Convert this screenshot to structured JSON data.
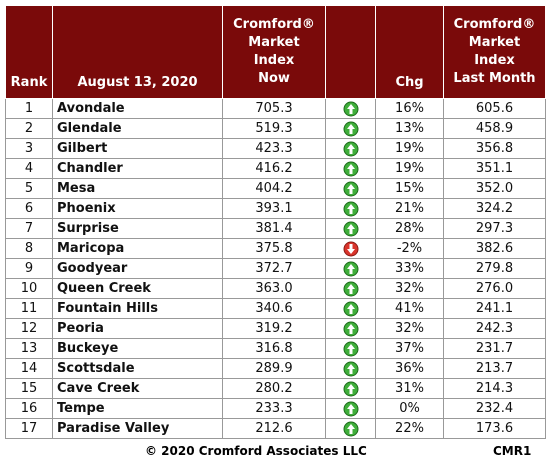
{
  "header": {
    "rank": "Rank",
    "date": "August 13, 2020",
    "now": "Cromford®\nMarket\nIndex\nNow",
    "chg": "Chg",
    "last": "Cromford®\nMarket\nIndex\nLast Month"
  },
  "rows": [
    {
      "rank": "1",
      "city": "Avondale",
      "now": "705.3",
      "chg": "16%",
      "last": "605.6",
      "trend": "up"
    },
    {
      "rank": "2",
      "city": "Glendale",
      "now": "519.3",
      "chg": "13%",
      "last": "458.9",
      "trend": "up"
    },
    {
      "rank": "3",
      "city": "Gilbert",
      "now": "423.3",
      "chg": "19%",
      "last": "356.8",
      "trend": "up"
    },
    {
      "rank": "4",
      "city": "Chandler",
      "now": "416.2",
      "chg": "19%",
      "last": "351.1",
      "trend": "up"
    },
    {
      "rank": "5",
      "city": "Mesa",
      "now": "404.2",
      "chg": "15%",
      "last": "352.0",
      "trend": "up"
    },
    {
      "rank": "6",
      "city": "Phoenix",
      "now": "393.1",
      "chg": "21%",
      "last": "324.2",
      "trend": "up"
    },
    {
      "rank": "7",
      "city": "Surprise",
      "now": "381.4",
      "chg": "28%",
      "last": "297.3",
      "trend": "up"
    },
    {
      "rank": "8",
      "city": "Maricopa",
      "now": "375.8",
      "chg": "-2%",
      "last": "382.6",
      "trend": "down"
    },
    {
      "rank": "9",
      "city": "Goodyear",
      "now": "372.7",
      "chg": "33%",
      "last": "279.8",
      "trend": "up"
    },
    {
      "rank": "10",
      "city": "Queen Creek",
      "now": "363.0",
      "chg": "32%",
      "last": "276.0",
      "trend": "up"
    },
    {
      "rank": "11",
      "city": "Fountain Hills",
      "now": "340.6",
      "chg": "41%",
      "last": "241.1",
      "trend": "up"
    },
    {
      "rank": "12",
      "city": "Peoria",
      "now": "319.2",
      "chg": "32%",
      "last": "242.3",
      "trend": "up"
    },
    {
      "rank": "13",
      "city": "Buckeye",
      "now": "316.8",
      "chg": "37%",
      "last": "231.7",
      "trend": "up"
    },
    {
      "rank": "14",
      "city": "Scottsdale",
      "now": "289.9",
      "chg": "36%",
      "last": "213.7",
      "trend": "up"
    },
    {
      "rank": "15",
      "city": "Cave Creek",
      "now": "280.2",
      "chg": "31%",
      "last": "214.3",
      "trend": "up"
    },
    {
      "rank": "16",
      "city": "Tempe",
      "now": "233.3",
      "chg": "0%",
      "last": "232.4",
      "trend": "up"
    },
    {
      "rank": "17",
      "city": "Paradise Valley",
      "now": "212.6",
      "chg": "22%",
      "last": "173.6",
      "trend": "up"
    }
  ],
  "footer": {
    "copyright": "© 2020 Cromford Associates LLC",
    "code": "CMR1"
  }
}
